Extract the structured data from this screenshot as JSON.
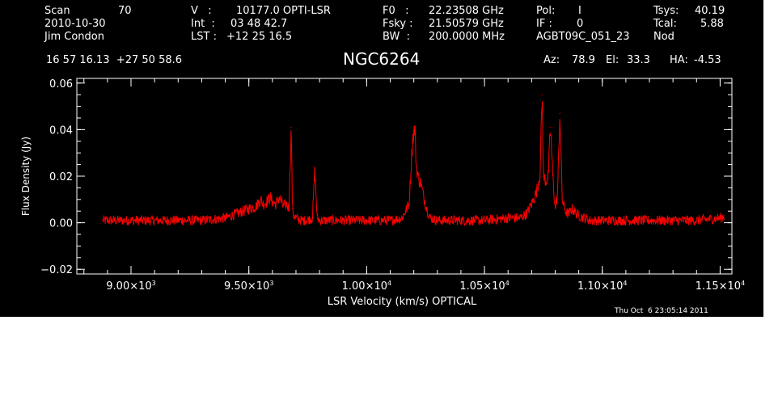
{
  "header": {
    "row1": {
      "scan_label": "Scan",
      "scan_value": "70",
      "v_label": "V   :",
      "v_value": "10177.0 OPTI-LSR",
      "f0_label": "F0   :",
      "f0_value": "22.23508 GHz",
      "pol_label": "Pol:",
      "pol_value": "I",
      "tsys_label": "Tsys:",
      "tsys_value": "40.19"
    },
    "row2": {
      "date": "2010-10-30",
      "int_label": "Int  :",
      "int_value": "03 48 42.7",
      "fsky_label": "Fsky :",
      "fsky_value": "21.50579 GHz",
      "if_label": "IF :",
      "if_value": "0",
      "tcal_label": "Tcal:",
      "tcal_value": "5.88"
    },
    "row3": {
      "observer": "Jim Condon",
      "lst_label": "LST :",
      "lst_value": "+12 25 16.5",
      "bw_label": "BW  :",
      "bw_value": "200.0000 MHz",
      "project": "AGBT09C_051_23",
      "proc": "Nod"
    },
    "coords": "16 57 16.13  +27 50 58.6",
    "source": "NGC6264",
    "az_label": "Az:",
    "az_value": "78.9",
    "el_label": "El:",
    "el_value": "33.3",
    "ha_label": "HA:",
    "ha_value": "-4.53"
  },
  "timestamp": "Thu Oct  6 23:05:14 2011",
  "colors": {
    "background": "#000000",
    "axes": "#ffffff",
    "spectrum": "#ff0000"
  },
  "chart_data": {
    "type": "line",
    "xlabel": "LSR Velocity (km/s) OPTICAL",
    "ylabel": "Flux Density (Jy)",
    "xlim": [
      8770,
      11550
    ],
    "ylim": [
      -0.022,
      0.062
    ],
    "x_ticks": [
      {
        "value": 9000,
        "mantissa": "9.00",
        "exp": "3"
      },
      {
        "value": 9500,
        "mantissa": "9.50",
        "exp": "3"
      },
      {
        "value": 10000,
        "mantissa": "1.00",
        "exp": "4"
      },
      {
        "value": 10500,
        "mantissa": "1.05",
        "exp": "4"
      },
      {
        "value": 11000,
        "mantissa": "1.10",
        "exp": "4"
      },
      {
        "value": 11500,
        "mantissa": "1.15",
        "exp": "4"
      }
    ],
    "y_ticks": [
      {
        "value": -0.02,
        "label": "−0.02"
      },
      {
        "value": 0.0,
        "label": "0.00"
      },
      {
        "value": 0.02,
        "label": "0.02"
      },
      {
        "value": 0.04,
        "label": "0.04"
      },
      {
        "value": 0.06,
        "label": "0.06"
      }
    ],
    "grid": false,
    "series": [
      {
        "x": [
          8880,
          9000,
          9100,
          9200,
          9300,
          9400,
          9450,
          9500,
          9530,
          9550,
          9560,
          9575,
          9590,
          9600,
          9615,
          9630,
          9645,
          9660,
          9670,
          9680,
          9685,
          9690,
          9700,
          9720,
          9740,
          9770,
          9780,
          9790,
          9800,
          9850,
          9900,
          9950,
          10000,
          10100,
          10150,
          10180,
          10195,
          10205,
          10210,
          10220,
          10230,
          10240,
          10255,
          10270,
          10300,
          10400,
          10500,
          10600,
          10650,
          10680,
          10700,
          10720,
          10735,
          10745,
          10750,
          10760,
          10770,
          10780,
          10790,
          10800,
          10810,
          10820,
          10830,
          10840,
          10850,
          10860,
          10870,
          10880,
          10900,
          10950,
          11000,
          11100,
          11200,
          11300,
          11400,
          11500,
          11520
        ],
        "y": [
          0.001,
          0.001,
          0.001,
          0.001,
          0.001,
          0.002,
          0.004,
          0.006,
          0.007,
          0.01,
          0.008,
          0.009,
          0.011,
          0.009,
          0.008,
          0.011,
          0.007,
          0.008,
          0.006,
          0.041,
          0.006,
          0.003,
          0.002,
          0.001,
          0.001,
          0.002,
          0.023,
          0.002,
          0.001,
          0.001,
          0.001,
          0.001,
          0.001,
          0.001,
          0.002,
          0.008,
          0.036,
          0.041,
          0.025,
          0.019,
          0.017,
          0.012,
          0.006,
          0.002,
          0.001,
          0.001,
          0.001,
          0.002,
          0.002,
          0.004,
          0.008,
          0.013,
          0.02,
          0.055,
          0.02,
          0.018,
          0.019,
          0.041,
          0.02,
          0.006,
          0.012,
          0.047,
          0.01,
          0.006,
          0.004,
          0.004,
          0.006,
          0.005,
          0.003,
          0.001,
          0.001,
          0.001,
          0.001,
          0.001,
          0.001,
          0.002,
          0.003
        ]
      }
    ]
  }
}
